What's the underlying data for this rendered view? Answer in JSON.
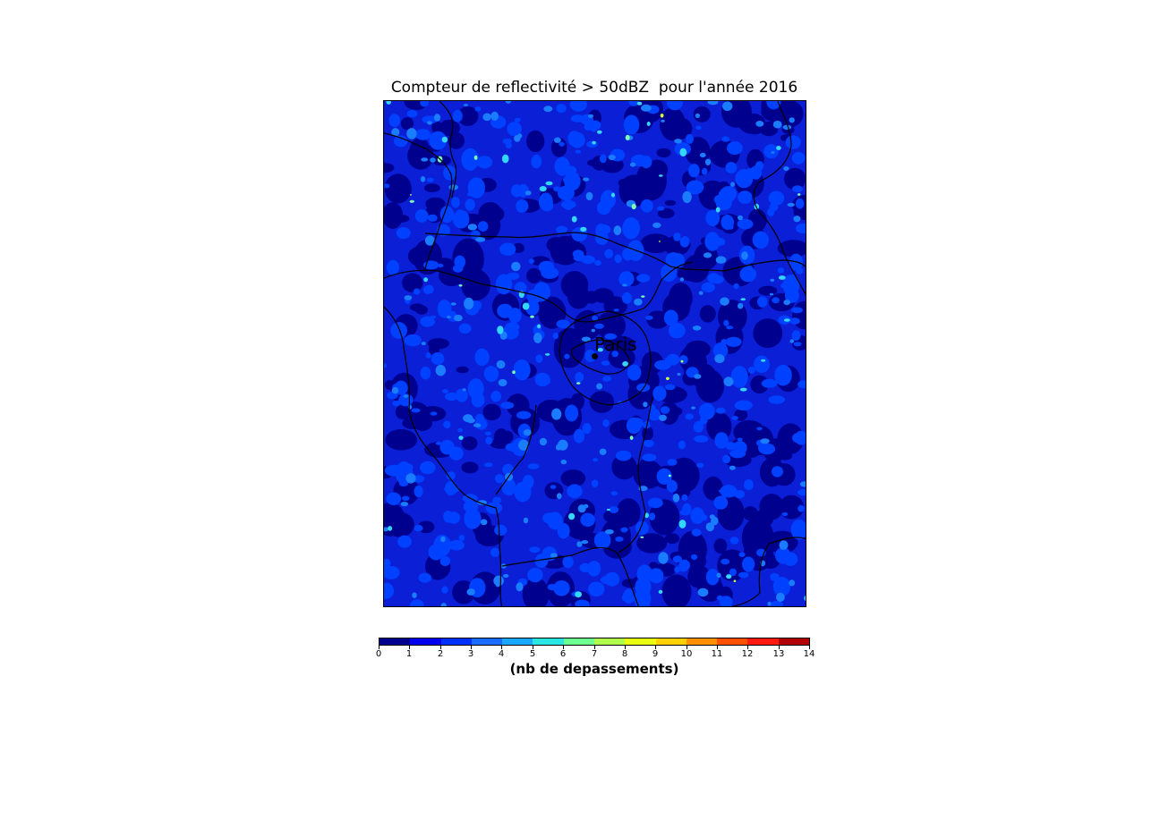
{
  "title": "Compteur de reflectivité > 50dBZ  pour l'année 2016",
  "map": {
    "city_label": "Paris",
    "field_colors": [
      "#00008f",
      "#0a1fd6",
      "#0040ff",
      "#1a7cff",
      "#34d6ff",
      "#7cffb0",
      "#d4ff40"
    ]
  },
  "colorbar": {
    "label": "(nb de depassements)",
    "ticks": [
      "0",
      "1",
      "2",
      "3",
      "4",
      "5",
      "6",
      "7",
      "8",
      "9",
      "10",
      "11",
      "12",
      "13",
      "14"
    ],
    "colors": [
      "#00008f",
      "#0000ee",
      "#0030ff",
      "#1a6cff",
      "#1aa8ff",
      "#2ae6e0",
      "#6cff90",
      "#b0ff4c",
      "#e8ff10",
      "#ffd000",
      "#ff9000",
      "#ff5000",
      "#ff1a10",
      "#b00000"
    ]
  },
  "chart_data": {
    "type": "heatmap",
    "title": "Compteur de reflectivité > 50dBZ  pour l'année 2016",
    "colorbar_label": "(nb de depassements)",
    "range": [
      0,
      14
    ],
    "annotation": "Paris"
  }
}
